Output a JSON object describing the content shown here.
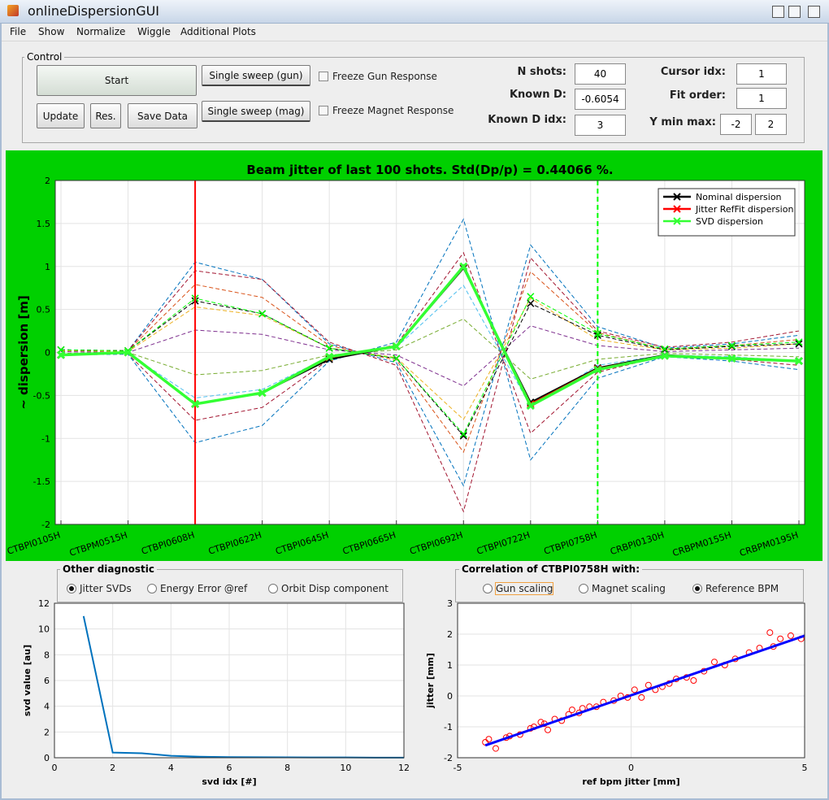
{
  "window": {
    "title": "onlineDispersionGUI"
  },
  "menu": [
    "File",
    "Show",
    "Normalize",
    "Wiggle",
    "Additional Plots"
  ],
  "control": {
    "title": "Control",
    "buttons": [
      "Start",
      "Update",
      "Res.",
      "Save Data",
      "Single sweep (gun)",
      "Single sweep (mag)"
    ],
    "checkboxes": [
      "Freeze Gun Response",
      "Freeze Magnet Response"
    ],
    "fields": [
      {
        "label": "N shots:",
        "value": 40
      },
      {
        "label": "Known D:",
        "value": -0.6054
      },
      {
        "label": "Known D idx:",
        "value": 3
      },
      {
        "label": "Cursor idx:",
        "value": 1
      },
      {
        "label": "Fit order:",
        "value": 1
      },
      {
        "label": "Y min max:",
        "value": [
          -2,
          2
        ]
      }
    ]
  },
  "panels": [
    {
      "title": "Other diagnostic",
      "options": [
        "Jitter SVDs",
        "Energy Error @ref",
        "Orbit Disp component"
      ],
      "selected": 0
    },
    {
      "title": "Correlation of CTBPI0758H with:",
      "options": [
        "Gun scaling",
        "Magnet scaling",
        "Reference BPM"
      ],
      "selected": 2
    }
  ],
  "chart_data": [
    {
      "type": "line",
      "title": "Beam jitter of last 100 shots. Std(Dp/p) = 0.44066 %.",
      "y_label": "~ dispersion [m]",
      "background": "#00d000",
      "categories": [
        "CTBPI0105H",
        "CTBPM0515H",
        "CTBPI0608H",
        "CTBPI0622H",
        "CTBPI0645H",
        "CTBPI0665H",
        "CTBPI0692H",
        "CTBPI0722H",
        "CTBPI0758H",
        "CRBPI0130H",
        "CRBPM0155H",
        "CRBPM0195H"
      ],
      "ylim": [
        -2,
        2
      ],
      "yticks": [
        -2,
        -1.5,
        -1,
        -0.5,
        0,
        0.5,
        1,
        1.5,
        2
      ],
      "grid": true,
      "legend": "upper right",
      "shots": [
        {
          "color": "#0072bd",
          "values": [
            0.03,
            0.02,
            1.05,
            0.85,
            0.1,
            -0.12,
            -1.55,
            1.25,
            0.3,
            0.05,
            0.1,
            0.2
          ]
        },
        {
          "color": "#d95319",
          "values": [
            0.02,
            0.02,
            0.79,
            0.64,
            0.08,
            -0.09,
            -1.16,
            0.94,
            0.23,
            0.04,
            0.08,
            0.15
          ]
        },
        {
          "color": "#edb120",
          "values": [
            0.02,
            0.01,
            0.53,
            0.43,
            0.05,
            -0.06,
            -0.78,
            0.63,
            0.15,
            0.03,
            0.05,
            0.1
          ]
        },
        {
          "color": "#7e2f8e",
          "values": [
            0.01,
            0.0,
            0.26,
            0.21,
            0.03,
            -0.03,
            -0.39,
            0.31,
            0.08,
            0.01,
            0.03,
            0.05
          ]
        },
        {
          "color": "#77ac30",
          "values": [
            -0.01,
            0.0,
            -0.26,
            -0.21,
            -0.03,
            0.03,
            0.39,
            -0.31,
            -0.08,
            -0.01,
            -0.03,
            -0.05
          ]
        },
        {
          "color": "#4dbeee",
          "values": [
            -0.02,
            -0.01,
            -0.53,
            -0.43,
            -0.05,
            0.06,
            0.78,
            -0.63,
            -0.15,
            -0.03,
            -0.05,
            -0.1
          ]
        },
        {
          "color": "#a2142f",
          "values": [
            -0.02,
            -0.02,
            -0.79,
            -0.64,
            -0.08,
            0.09,
            1.16,
            -0.94,
            -0.23,
            -0.04,
            -0.08,
            -0.15
          ]
        },
        {
          "color": "#0072bd",
          "values": [
            -0.03,
            -0.02,
            -1.05,
            -0.85,
            -0.1,
            0.12,
            1.55,
            -1.25,
            -0.3,
            -0.05,
            -0.1,
            -0.2
          ]
        },
        {
          "color": "#a2142f",
          "values": [
            0.03,
            0.02,
            0.95,
            0.85,
            0.12,
            -0.15,
            -1.85,
            1.1,
            0.25,
            0.06,
            0.12,
            0.25
          ]
        },
        {
          "color": "#000000",
          "marker": "x",
          "values": [
            0.03,
            0.02,
            0.6,
            0.45,
            0.05,
            -0.07,
            -0.97,
            0.57,
            0.2,
            0.03,
            0.07,
            0.1
          ]
        },
        {
          "color": "#00ff00",
          "marker": "x",
          "values": [
            0.03,
            0.02,
            0.63,
            0.45,
            0.05,
            -0.07,
            -0.95,
            0.65,
            0.22,
            0.04,
            0.08,
            0.12
          ]
        }
      ],
      "cursors": [
        {
          "category": "CTBPI0608H",
          "color": "#ff0000",
          "style": "solid"
        },
        {
          "category": "CTBPI0758H",
          "color": "#00ff00",
          "style": "dashed"
        }
      ],
      "series": [
        {
          "name": "Nominal dispersion",
          "color": "#000000",
          "values": [
            -0.03,
            0.0,
            -0.6,
            -0.47,
            -0.08,
            0.07,
            0.98,
            -0.58,
            -0.18,
            -0.03,
            -0.07,
            -0.1
          ]
        },
        {
          "name": "Jitter RefFit dispersion",
          "color": "#ff0000",
          "values": [
            -0.03,
            0.0,
            -0.6,
            -0.47,
            -0.06,
            0.07,
            0.99,
            -0.6,
            -0.19,
            -0.04,
            -0.07,
            -0.1
          ]
        },
        {
          "name": "SVD dispersion",
          "color": "#33ff33",
          "values": [
            -0.03,
            0.0,
            -0.6,
            -0.47,
            -0.05,
            0.07,
            1.0,
            -0.62,
            -0.2,
            -0.04,
            -0.07,
            -0.1
          ]
        }
      ]
    },
    {
      "type": "line",
      "x_label": "svd idx [#]",
      "y_label": "svd value [au]",
      "x": [
        1,
        2,
        3,
        4,
        5,
        6,
        7,
        8,
        9,
        10,
        11,
        12
      ],
      "values": [
        11,
        0.4,
        0.35,
        0.15,
        0.08,
        0.05,
        0.04,
        0.03,
        0.02,
        0.02,
        0.01,
        0.01
      ],
      "color": "#0072bd",
      "xlim": [
        0,
        12
      ],
      "xticks": [
        0,
        2,
        4,
        6,
        8,
        10,
        12
      ],
      "ylim": [
        0,
        12
      ],
      "yticks": [
        0,
        2,
        4,
        6,
        8,
        10,
        12
      ],
      "grid": true
    },
    {
      "type": "scatter",
      "x_label": "ref bpm jitter [mm]",
      "y_label": "jitter [mm]",
      "x": [
        -4.2,
        -4.1,
        -3.9,
        -3.6,
        -3.5,
        -3.2,
        -2.9,
        -2.8,
        -2.6,
        -2.5,
        -2.4,
        -2.2,
        -2.0,
        -1.8,
        -1.7,
        -1.5,
        -1.4,
        -1.2,
        -1.0,
        -0.8,
        -0.5,
        -0.3,
        -0.1,
        0.1,
        0.3,
        0.5,
        0.7,
        0.9,
        1.1,
        1.3,
        1.6,
        1.8,
        2.1,
        2.4,
        2.7,
        3.0,
        3.4,
        3.7,
        4.0,
        4.1,
        4.3,
        4.6,
        4.9
      ],
      "values": [
        -1.5,
        -1.4,
        -1.7,
        -1.35,
        -1.3,
        -1.25,
        -1.05,
        -1.0,
        -0.85,
        -0.9,
        -1.1,
        -0.75,
        -0.8,
        -0.6,
        -0.45,
        -0.55,
        -0.4,
        -0.35,
        -0.35,
        -0.2,
        -0.15,
        0.0,
        -0.05,
        0.2,
        -0.05,
        0.35,
        0.2,
        0.3,
        0.4,
        0.55,
        0.6,
        0.5,
        0.8,
        1.1,
        1.0,
        1.2,
        1.4,
        1.55,
        2.05,
        1.6,
        1.85,
        1.95,
        1.85
      ],
      "color": "#ff0000",
      "fit": {
        "x": [
          -4.2,
          5
        ],
        "values": [
          -1.6,
          1.95
        ],
        "color": "#0000ff"
      },
      "xlim": [
        -5,
        5
      ],
      "xticks": [
        -5,
        0,
        5
      ],
      "ylim": [
        -2,
        3
      ],
      "yticks": [
        -2,
        -1,
        0,
        1,
        2,
        3
      ],
      "grid": true
    }
  ]
}
